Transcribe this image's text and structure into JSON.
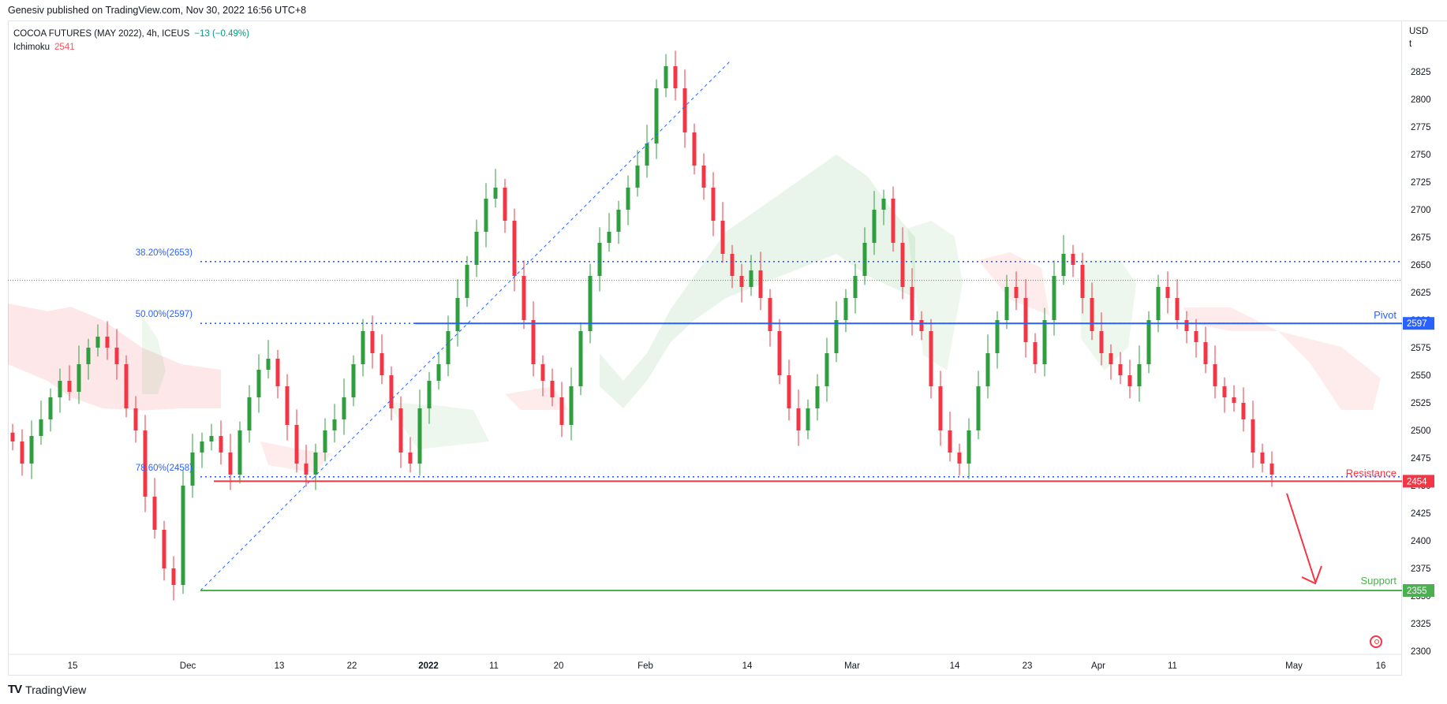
{
  "header": {
    "published": "Genesiv published on TradingView.com, Nov 30, 2022 16:56 UTC+8"
  },
  "legend": {
    "symbol": "COCOA FUTURES (MAY 2022), 4h, ICEUS",
    "change": "−13 (−0.49%)",
    "indicator": "Ichimoku",
    "indicator_value": "2541"
  },
  "axis": {
    "currency_line1": "USD",
    "currency_line2": "t"
  },
  "brand": {
    "name": "TradingView",
    "logo": "TV"
  },
  "colors": {
    "up": "#089981",
    "candle_up": "#2e9e3e",
    "candle_down": "#f23645",
    "pivot": "#2962ff",
    "resistance": "#f23645",
    "support": "#4caf50",
    "fib": "#2962ff",
    "cloud_bull": "#4caf50",
    "cloud_bear": "#f23645"
  },
  "chart_data": {
    "type": "candlestick",
    "title": "COCOA FUTURES (MAY 2022), 4h, ICEUS",
    "ylim": [
      2300,
      2825
    ],
    "y_ticks": [
      2825,
      2800,
      2775,
      2750,
      2725,
      2700,
      2675,
      2650,
      2625,
      2600,
      2575,
      2550,
      2525,
      2500,
      2475,
      2450,
      2425,
      2400,
      2375,
      2350,
      2325,
      2300
    ],
    "x_ticks": [
      "15",
      "Dec",
      "13",
      "22",
      "2022",
      "11",
      "20",
      "Feb",
      "14",
      "Mar",
      "14",
      "23",
      "Apr",
      "11",
      "May",
      "16"
    ],
    "levels": [
      {
        "name": "Pivot",
        "value": 2597
      },
      {
        "name": "Resistance",
        "value": 2454
      },
      {
        "name": "Support",
        "value": 2355
      }
    ],
    "fibonacci": [
      {
        "label": "38.20%(2653)",
        "value": 2653
      },
      {
        "label": "50.00%(2597)",
        "value": 2597
      },
      {
        "label": "78.60%(2458)",
        "value": 2458
      }
    ],
    "fib_line": {
      "from": 2355,
      "to": 2835
    },
    "last_price": 2636,
    "close_series": [
      2490,
      2470,
      2495,
      2510,
      2530,
      2545,
      2535,
      2560,
      2575,
      2585,
      2575,
      2560,
      2520,
      2500,
      2440,
      2410,
      2375,
      2360,
      2450,
      2480,
      2490,
      2495,
      2480,
      2460,
      2500,
      2530,
      2555,
      2565,
      2540,
      2505,
      2470,
      2460,
      2480,
      2500,
      2510,
      2530,
      2560,
      2590,
      2570,
      2550,
      2520,
      2480,
      2470,
      2520,
      2545,
      2560,
      2590,
      2620,
      2650,
      2680,
      2710,
      2720,
      2690,
      2640,
      2600,
      2560,
      2545,
      2530,
      2505,
      2540,
      2590,
      2640,
      2670,
      2680,
      2700,
      2720,
      2740,
      2760,
      2810,
      2830,
      2810,
      2770,
      2740,
      2720,
      2690,
      2660,
      2640,
      2630,
      2645,
      2620,
      2590,
      2550,
      2520,
      2500,
      2520,
      2540,
      2570,
      2600,
      2620,
      2640,
      2670,
      2700,
      2710,
      2670,
      2630,
      2600,
      2590,
      2540,
      2500,
      2480,
      2470,
      2500,
      2540,
      2570,
      2600,
      2630,
      2620,
      2580,
      2560,
      2600,
      2640,
      2660,
      2650,
      2620,
      2590,
      2570,
      2560,
      2550,
      2540,
      2560,
      2600,
      2630,
      2620,
      2600,
      2590,
      2580,
      2560,
      2540,
      2530,
      2525,
      2510,
      2480,
      2470,
      2460
    ],
    "cloud": [
      {
        "segment": "bearish",
        "top": [
          2615,
          2608,
          2612,
          2600,
          2575,
          2560,
          2555
        ],
        "bottom": [
          2560,
          2545,
          2530,
          2520,
          2518,
          2520,
          2520
        ]
      },
      {
        "segment": "bullish",
        "top": [
          2570,
          2545,
          2570,
          2610,
          2640,
          2680,
          2750,
          2730,
          2700,
          2675
        ],
        "bottom": [
          2540,
          2520,
          2545,
          2580,
          2600,
          2620,
          2660,
          2640,
          2630,
          2620
        ]
      }
    ]
  }
}
